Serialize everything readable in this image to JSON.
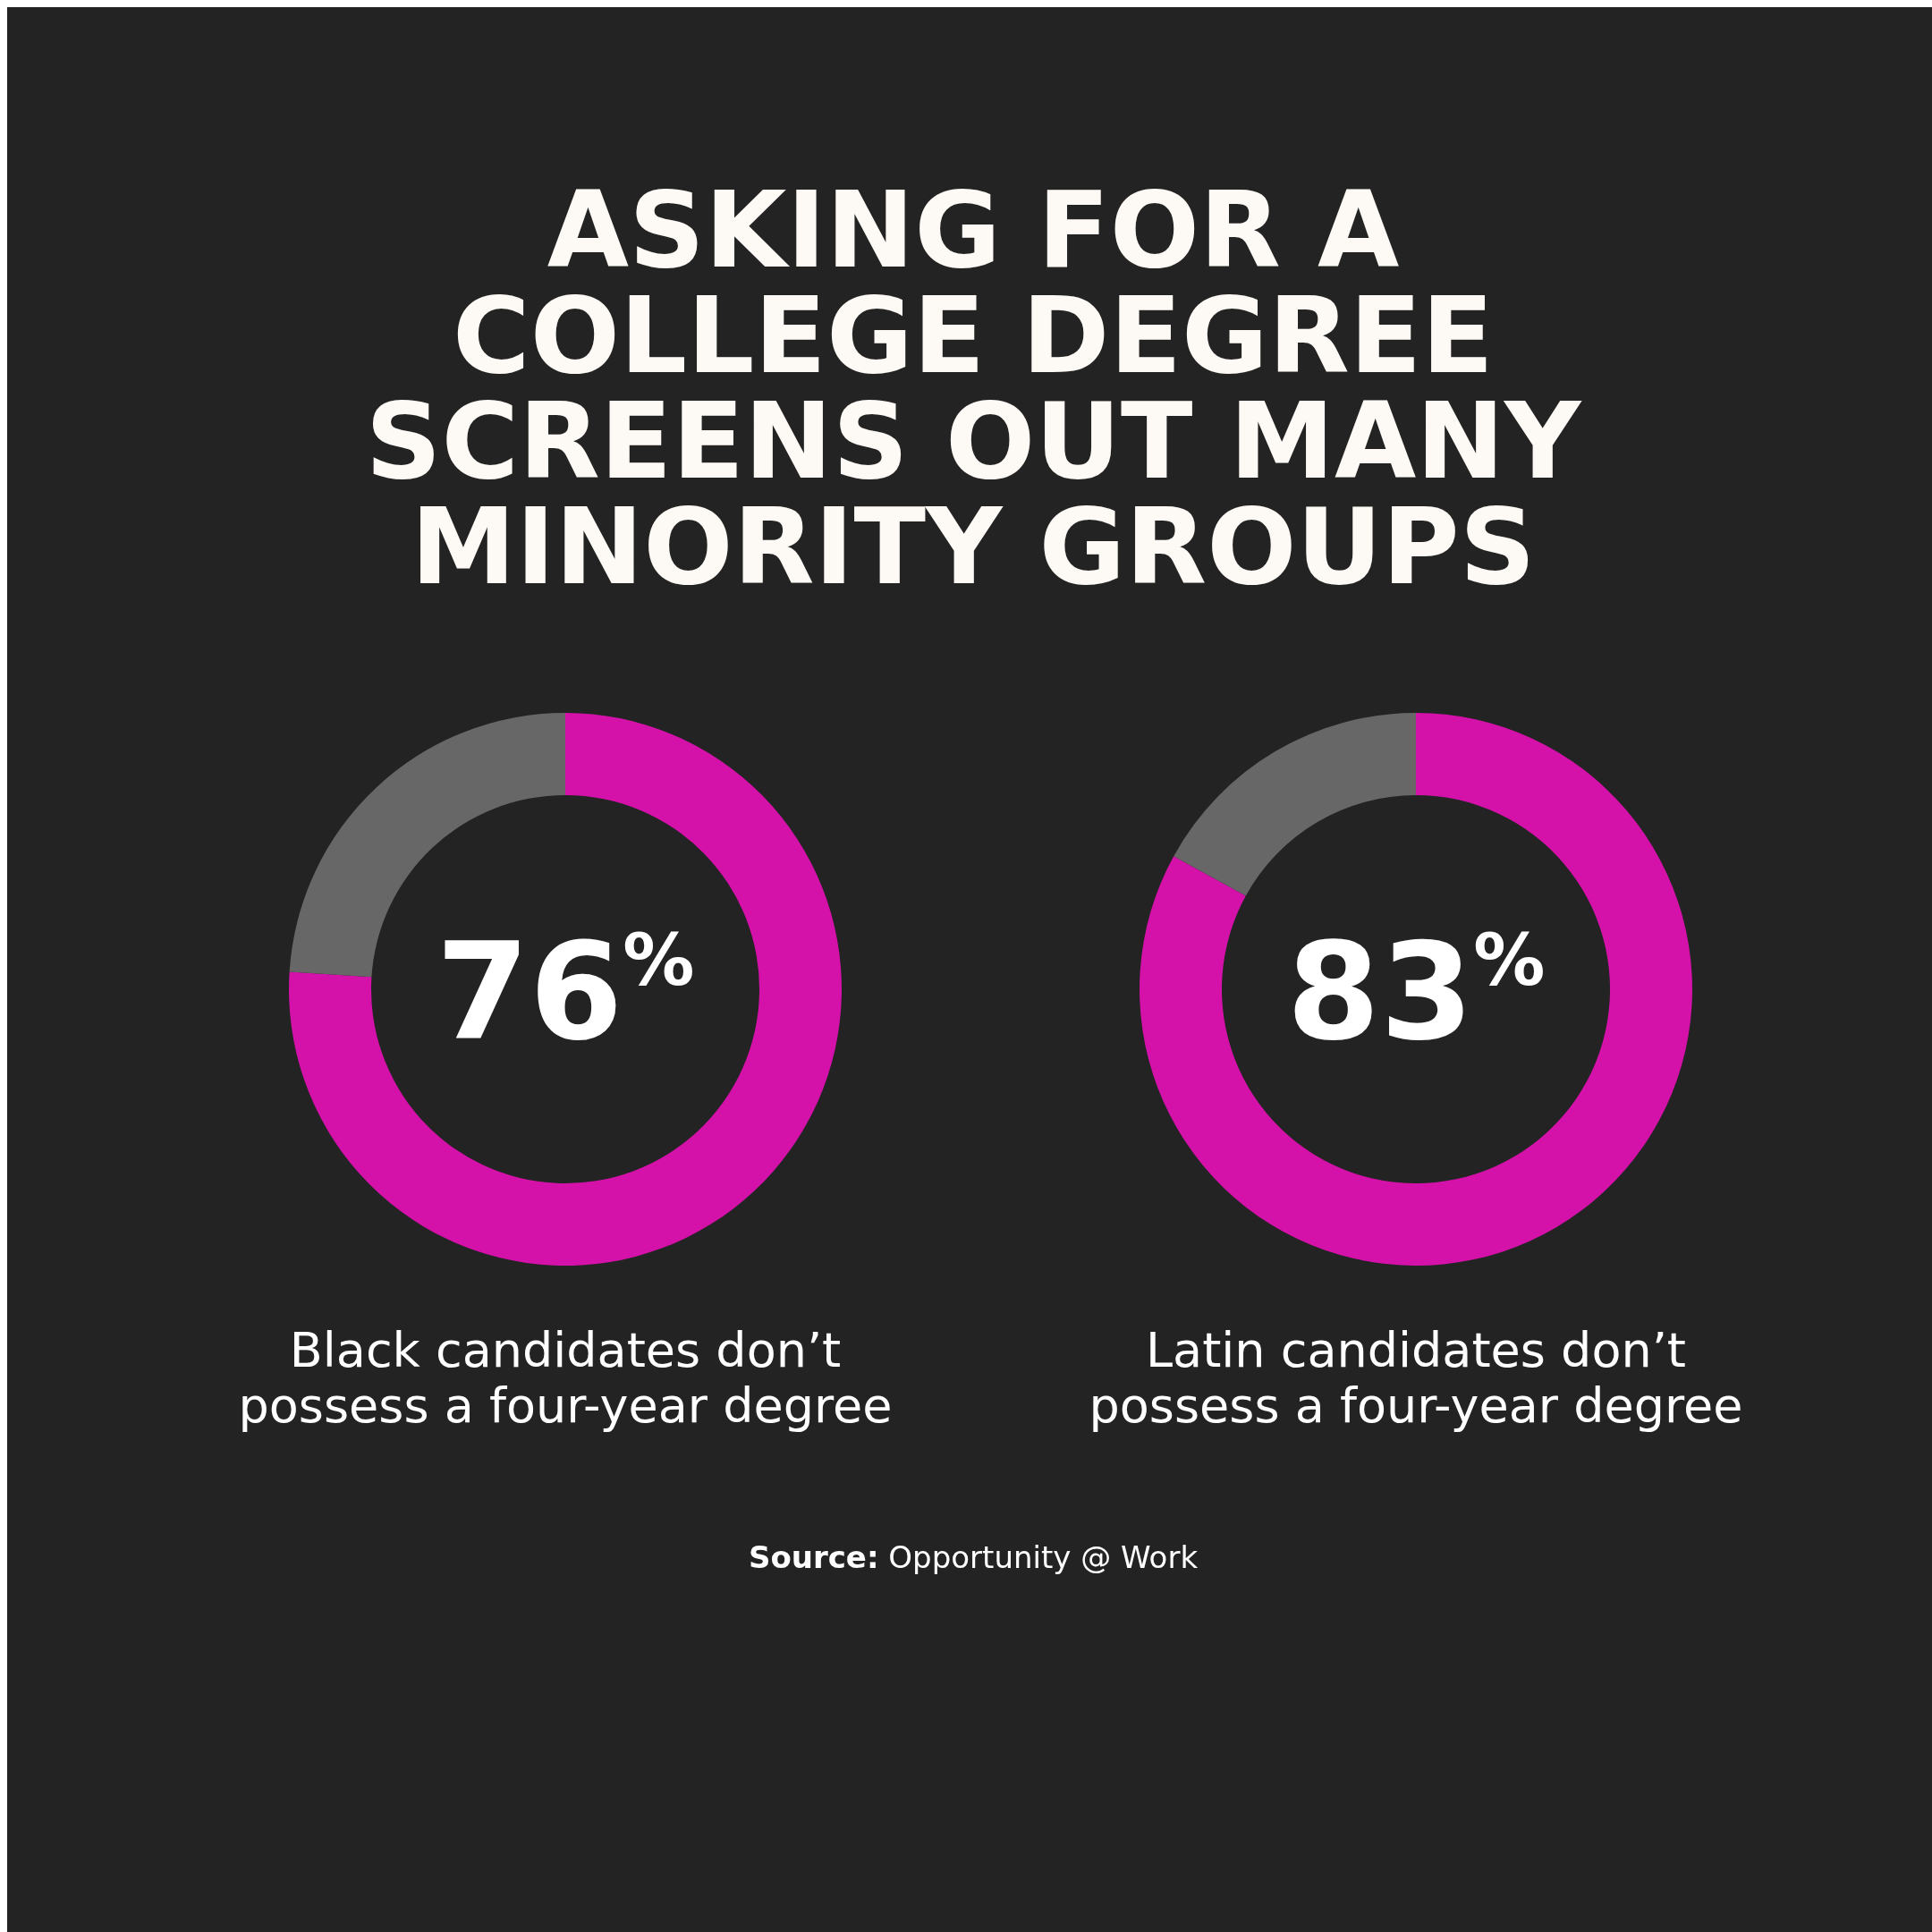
{
  "chart_data": [
    {
      "type": "donut",
      "title": "ASKING FOR A COLLEGE DEGREE SCREENS OUT MANY MINORITY GROUPS",
      "categories": [
        null,
        null
      ],
      "values": [
        76,
        24
      ],
      "colors": [
        "#d411a9",
        "#676767"
      ],
      "value_labels": [
        "76$^{%}$",
        null
      ],
      "xlabel": "Black candidates don’t possess a four-year degree",
      "annotations": [
        "Source: Opportunity @ Work"
      ]
    },
    {
      "type": "donut",
      "categories": [
        null,
        null
      ],
      "values": [
        83,
        17
      ],
      "colors": [
        "#d411a9",
        "#676767"
      ],
      "value_labels": [
        "83$^{%}$",
        null
      ],
      "xlabel": "Latin candidates don’t possess a four-year degree"
    }
  ]
}
